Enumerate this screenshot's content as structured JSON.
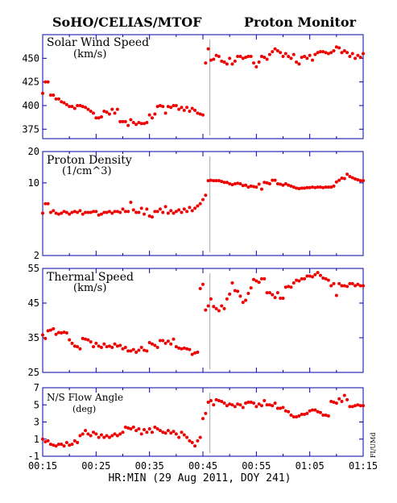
{
  "header": {
    "left": "SoHO/CELIAS/MTOF",
    "right": "Proton Monitor"
  },
  "side_label": "FI/UMd",
  "x_axis": {
    "label": "HR:MIN (29 Aug 2011, DOY 241)",
    "ticks": [
      "00:15",
      "00:25",
      "00:35",
      "00:45",
      "00:55",
      "01:05",
      "01:15"
    ]
  },
  "colors": {
    "axis": "#0000aa",
    "points": "#ee0000",
    "marker": "#aaaaaa"
  },
  "chart_data": [
    {
      "type": "scatter",
      "title": "Solar Wind Speed",
      "unit": "(km/s)",
      "x_range_min": [
        15,
        75
      ],
      "ylim": [
        365,
        475
      ],
      "yticks": [
        375,
        400,
        425,
        450
      ],
      "marker_line_x_min": 46.3,
      "x_min": [
        15.0,
        15.5,
        16.0,
        16.5,
        17.0,
        17.5,
        18.0,
        18.5,
        19.0,
        19.5,
        20.0,
        20.5,
        21.0,
        21.5,
        22.0,
        22.5,
        23.0,
        23.5,
        24.0,
        24.5,
        25.0,
        25.5,
        26.0,
        26.5,
        27.0,
        27.5,
        28.0,
        28.5,
        29.0,
        29.5,
        30.0,
        30.5,
        31.0,
        31.5,
        32.0,
        32.5,
        33.0,
        33.5,
        34.0,
        34.5,
        35.0,
        35.5,
        36.0,
        36.5,
        37.0,
        37.5,
        38.0,
        38.5,
        39.0,
        39.5,
        40.0,
        40.5,
        41.0,
        41.5,
        42.0,
        42.5,
        43.0,
        43.5,
        44.0,
        44.5,
        45.0,
        45.5,
        46.0,
        46.5,
        47.0,
        47.5,
        48.0,
        48.5,
        49.0,
        49.5,
        50.0,
        50.5,
        51.0,
        51.5,
        52.0,
        52.5,
        53.0,
        53.5,
        54.0,
        54.5,
        55.0,
        55.5,
        56.0,
        56.5,
        57.0,
        57.5,
        58.0,
        58.5,
        59.0,
        59.5,
        60.0,
        60.5,
        61.0,
        61.5,
        62.0,
        62.5,
        63.0,
        63.5,
        64.0,
        64.5,
        65.0,
        65.5,
        66.0,
        66.5,
        67.0,
        67.5,
        68.0,
        68.5,
        69.0,
        69.5,
        70.0,
        70.5,
        71.0,
        71.5,
        72.0,
        72.5,
        73.0,
        73.5,
        74.0,
        74.5,
        75.0
      ],
      "y": [
        413,
        425,
        425,
        411,
        411,
        407,
        407,
        404,
        403,
        401,
        399,
        399,
        397,
        400,
        400,
        399,
        398,
        396,
        394,
        392,
        387,
        387,
        388,
        394,
        393,
        391,
        396,
        392,
        396,
        383,
        383,
        383,
        379,
        385,
        382,
        380,
        382,
        381,
        381,
        382,
        390,
        387,
        391,
        399,
        400,
        399,
        392,
        399,
        398,
        400,
        400,
        396,
        398,
        395,
        398,
        394,
        397,
        395,
        392,
        391,
        390,
        445,
        460,
        448,
        449,
        453,
        452,
        447,
        446,
        444,
        450,
        444,
        447,
        452,
        452,
        450,
        451,
        452,
        452,
        445,
        441,
        446,
        452,
        451,
        449,
        454,
        457,
        460,
        458,
        456,
        452,
        455,
        452,
        450,
        454,
        446,
        444,
        451,
        452,
        450,
        453,
        448,
        454,
        456,
        457,
        457,
        456,
        455,
        456,
        458,
        462,
        461,
        456,
        458,
        456,
        452,
        455,
        450,
        453,
        451,
        455
      ]
    },
    {
      "type": "scatter",
      "title": "Proton Density",
      "unit": "(1/cm^3)",
      "scale": "log",
      "x_range_min": [
        15,
        75
      ],
      "ylim": [
        2,
        20
      ],
      "yticks": [
        2,
        10,
        20
      ],
      "marker_line_x_min": 46.3,
      "x_min": [
        15.0,
        15.5,
        16.0,
        16.5,
        17.0,
        17.5,
        18.0,
        18.5,
        19.0,
        19.5,
        20.0,
        20.5,
        21.0,
        21.5,
        22.0,
        22.5,
        23.0,
        23.5,
        24.0,
        24.5,
        25.0,
        25.5,
        26.0,
        26.5,
        27.0,
        27.5,
        28.0,
        28.5,
        29.0,
        29.5,
        30.0,
        30.5,
        31.0,
        31.5,
        32.0,
        32.5,
        33.0,
        33.5,
        34.0,
        34.5,
        35.0,
        35.5,
        36.0,
        36.5,
        37.0,
        37.5,
        38.0,
        38.5,
        39.0,
        39.5,
        40.0,
        40.5,
        41.0,
        41.5,
        42.0,
        42.5,
        43.0,
        43.5,
        44.0,
        44.5,
        45.0,
        45.5,
        46.0,
        46.5,
        47.0,
        47.5,
        48.0,
        48.5,
        49.0,
        49.5,
        50.0,
        50.5,
        51.0,
        51.5,
        52.0,
        52.5,
        53.0,
        53.5,
        54.0,
        54.5,
        55.0,
        55.5,
        56.0,
        56.5,
        57.0,
        57.5,
        58.0,
        58.5,
        59.0,
        59.5,
        60.0,
        60.5,
        61.0,
        61.5,
        62.0,
        62.5,
        63.0,
        63.5,
        64.0,
        64.5,
        65.0,
        65.5,
        66.0,
        66.5,
        67.0,
        67.5,
        68.0,
        68.5,
        69.0,
        69.5,
        70.0,
        70.5,
        71.0,
        71.5,
        72.0,
        72.5,
        73.0,
        73.5,
        74.0,
        74.5,
        75.0
      ],
      "y": [
        5.1,
        6.3,
        6.3,
        5.2,
        5.4,
        5.1,
        5.0,
        5.1,
        5.3,
        5.2,
        5.0,
        5.2,
        5.3,
        5.2,
        5.4,
        5.0,
        5.2,
        5.2,
        5.2,
        5.3,
        5.3,
        4.9,
        5.0,
        5.2,
        5.2,
        5.3,
        5.1,
        5.3,
        5.3,
        5.2,
        5.6,
        5.3,
        5.3,
        6.5,
        5.5,
        5.2,
        5.2,
        5.7,
        5.0,
        5.6,
        4.8,
        4.7,
        5.3,
        5.3,
        5.6,
        5.2,
        5.9,
        5.1,
        5.4,
        5.1,
        5.3,
        5.5,
        5.2,
        5.6,
        5.3,
        5.8,
        5.4,
        5.7,
        6.0,
        6.3,
        6.9,
        7.6,
        10.5,
        10.6,
        10.5,
        10.5,
        10.5,
        10.3,
        10.1,
        10.1,
        9.8,
        9.6,
        9.8,
        9.9,
        9.8,
        9.4,
        9.5,
        9.1,
        9.3,
        9.2,
        9.1,
        9.7,
        8.7,
        10.1,
        10.0,
        9.8,
        10.6,
        10.6,
        9.8,
        9.7,
        9.5,
        9.8,
        9.5,
        9.3,
        9.1,
        8.9,
        8.8,
        8.9,
        8.9,
        9.0,
        9.0,
        9.1,
        9.0,
        9.1,
        9.1,
        9.0,
        9.1,
        9.1,
        9.1,
        9.3,
        10.2,
        10.6,
        11.1,
        11.0,
        12.1,
        11.5,
        11.2,
        10.9,
        10.7,
        10.5,
        10.5
      ]
    },
    {
      "type": "scatter",
      "title": "Thermal Speed",
      "unit": "(km/s)",
      "x_range_min": [
        15,
        75
      ],
      "ylim": [
        25,
        55
      ],
      "yticks": [
        25,
        35,
        45,
        55
      ],
      "marker_line_x_min": 46.3,
      "x_min": [
        15.0,
        15.5,
        16.0,
        16.5,
        17.0,
        17.5,
        18.0,
        18.5,
        19.0,
        19.5,
        20.0,
        20.5,
        21.0,
        21.5,
        22.0,
        22.5,
        23.0,
        23.5,
        24.0,
        24.5,
        25.0,
        25.5,
        26.0,
        26.5,
        27.0,
        27.5,
        28.0,
        28.5,
        29.0,
        29.5,
        30.0,
        30.5,
        31.0,
        31.5,
        32.0,
        32.5,
        33.0,
        33.5,
        34.0,
        34.5,
        35.0,
        35.5,
        36.0,
        36.5,
        37.0,
        37.5,
        38.0,
        38.5,
        39.0,
        39.5,
        40.0,
        40.5,
        41.0,
        41.5,
        42.0,
        42.5,
        43.0,
        43.5,
        44.0,
        44.5,
        45.0,
        45.5,
        46.0,
        46.5,
        47.0,
        47.5,
        48.0,
        48.5,
        49.0,
        49.5,
        50.0,
        50.5,
        51.0,
        51.5,
        52.0,
        52.5,
        53.0,
        53.5,
        54.0,
        54.5,
        55.0,
        55.5,
        56.0,
        56.5,
        57.0,
        57.5,
        58.0,
        58.5,
        59.0,
        59.5,
        60.0,
        60.5,
        61.0,
        61.5,
        62.0,
        62.5,
        63.0,
        63.5,
        64.0,
        64.5,
        65.0,
        65.5,
        66.0,
        66.5,
        67.0,
        67.5,
        68.0,
        68.5,
        69.0,
        69.5,
        70.0,
        70.5,
        71.0,
        71.5,
        72.0,
        72.5,
        73.0,
        73.5,
        74.0,
        74.5,
        75.0
      ],
      "y": [
        35.8,
        34.8,
        37.0,
        37.2,
        37.6,
        36.0,
        36.5,
        36.4,
        36.6,
        36.4,
        34.4,
        33.4,
        32.6,
        32.4,
        31.8,
        34.8,
        34.6,
        34.4,
        33.8,
        32.4,
        33.4,
        32.6,
        32.2,
        33.2,
        32.4,
        32.6,
        32.2,
        33.2,
        32.6,
        32.8,
        31.8,
        32.2,
        31.2,
        31.2,
        31.6,
        30.8,
        31.4,
        32.2,
        31.4,
        31.2,
        33.6,
        33.2,
        32.8,
        32.2,
        34.2,
        34.2,
        33.4,
        34.0,
        33.2,
        34.6,
        32.4,
        32.0,
        31.8,
        32.0,
        31.8,
        31.6,
        30.2,
        30.6,
        30.8,
        49.2,
        50.4,
        43.0,
        44.2,
        46.2,
        44.0,
        43.4,
        42.8,
        44.2,
        43.4,
        46.2,
        47.6,
        50.8,
        48.6,
        48.4,
        47.0,
        45.2,
        45.8,
        47.8,
        49.4,
        51.8,
        51.4,
        51.0,
        52.0,
        52.0,
        48.0,
        48.0,
        47.4,
        46.6,
        48.0,
        46.4,
        46.4,
        49.6,
        49.8,
        49.6,
        50.8,
        51.6,
        51.4,
        52.0,
        52.0,
        52.8,
        52.8,
        52.6,
        53.2,
        53.8,
        53.0,
        52.2,
        52.0,
        51.6,
        50.0,
        50.6,
        47.2,
        50.6,
        50.0,
        50.0,
        49.8,
        50.6,
        50.6,
        50.0,
        50.4,
        50.0,
        50.0
      ]
    },
    {
      "type": "scatter",
      "title": "N/S Flow Angle",
      "unit": "(deg)",
      "x_range_min": [
        15,
        75
      ],
      "ylim": [
        -1,
        7
      ],
      "yticks": [
        -1,
        1,
        3,
        5,
        7
      ],
      "marker_line_x_min": 46.3,
      "x_min": [
        15.0,
        15.5,
        16.0,
        16.5,
        17.0,
        17.5,
        18.0,
        18.5,
        19.0,
        19.5,
        20.0,
        20.5,
        21.0,
        21.5,
        22.0,
        22.5,
        23.0,
        23.5,
        24.0,
        24.5,
        25.0,
        25.5,
        26.0,
        26.5,
        27.0,
        27.5,
        28.0,
        28.5,
        29.0,
        29.5,
        30.0,
        30.5,
        31.0,
        31.5,
        32.0,
        32.5,
        33.0,
        33.5,
        34.0,
        34.5,
        35.0,
        35.5,
        36.0,
        36.5,
        37.0,
        37.5,
        38.0,
        38.5,
        39.0,
        39.5,
        40.0,
        40.5,
        41.0,
        41.5,
        42.0,
        42.5,
        43.0,
        43.5,
        44.0,
        44.5,
        45.0,
        45.5,
        46.0,
        46.5,
        47.0,
        47.5,
        48.0,
        48.5,
        49.0,
        49.5,
        50.0,
        50.5,
        51.0,
        51.5,
        52.0,
        52.5,
        53.0,
        53.5,
        54.0,
        54.5,
        55.0,
        55.5,
        56.0,
        56.5,
        57.0,
        57.5,
        58.0,
        58.5,
        59.0,
        59.5,
        60.0,
        60.5,
        61.0,
        61.5,
        62.0,
        62.5,
        63.0,
        63.5,
        64.0,
        64.5,
        65.0,
        65.5,
        66.0,
        66.5,
        67.0,
        67.5,
        68.0,
        68.5,
        69.0,
        69.5,
        70.0,
        70.5,
        71.0,
        71.5,
        72.0,
        72.5,
        73.0,
        73.5,
        74.0,
        74.5,
        75.0
      ],
      "y": [
        1.0,
        0.7,
        0.8,
        0.4,
        0.3,
        0.2,
        0.4,
        0.4,
        0.2,
        0.6,
        0.3,
        0.4,
        0.8,
        0.6,
        1.4,
        1.6,
        2.0,
        1.6,
        1.4,
        1.8,
        1.6,
        1.2,
        1.5,
        1.2,
        1.4,
        1.2,
        1.4,
        1.6,
        1.4,
        1.6,
        1.8,
        2.4,
        2.3,
        2.2,
        2.4,
        2.0,
        2.2,
        1.6,
        2.1,
        1.8,
        2.2,
        1.8,
        2.4,
        2.2,
        2.0,
        1.8,
        1.7,
        2.0,
        1.7,
        1.9,
        1.6,
        1.2,
        1.8,
        1.5,
        1.2,
        0.8,
        0.6,
        0.2,
        0.8,
        1.2,
        3.4,
        4.0,
        5.3,
        5.5,
        5.0,
        5.6,
        5.5,
        5.4,
        5.2,
        4.9,
        5.1,
        5.0,
        4.8,
        5.1,
        5.0,
        4.7,
        5.2,
        5.3,
        5.3,
        5.2,
        4.8,
        5.1,
        4.9,
        5.5,
        5.0,
        5.0,
        4.9,
        5.2,
        4.6,
        4.6,
        4.7,
        4.3,
        4.2,
        3.8,
        3.6,
        3.6,
        3.7,
        3.9,
        3.9,
        4.0,
        4.3,
        4.4,
        4.4,
        4.2,
        4.1,
        3.8,
        3.8,
        3.7,
        5.4,
        5.3,
        5.2,
        5.7,
        5.4,
        6.1,
        5.6,
        4.8,
        4.8,
        4.9,
        5.0,
        4.9,
        4.9
      ]
    }
  ]
}
